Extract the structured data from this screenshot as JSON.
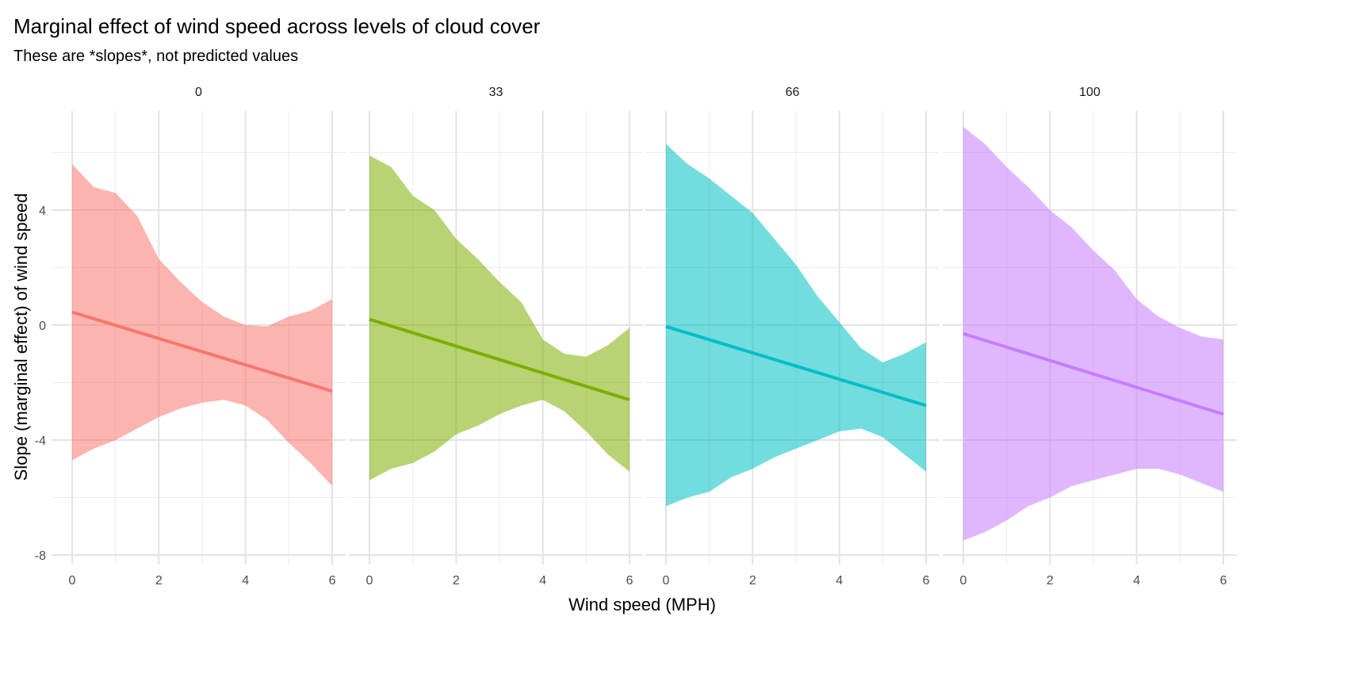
{
  "chart_data": {
    "type": "area",
    "title": "Marginal effect of wind speed across levels of cloud cover",
    "subtitle": "These are *slopes*, not predicted values",
    "xlabel": "Wind speed (MPH)",
    "ylabel": "Slope (marginal effect) of wind speed",
    "xlim": [
      -0.48,
      6.28
    ],
    "ylim": [
      -8.3,
      7.2
    ],
    "x_ticks": [
      "0",
      "2",
      "4",
      "6"
    ],
    "x_tick_values": [
      0,
      2,
      4,
      6
    ],
    "y_ticks": [
      "-8",
      "-4",
      "0",
      "4"
    ],
    "y_tick_values": [
      -8,
      -4,
      0,
      4
    ],
    "grid": true,
    "x": [
      0,
      0.5,
      1,
      1.5,
      2,
      2.5,
      3,
      3.5,
      4,
      4.5,
      5,
      5.5,
      6
    ],
    "series": [
      {
        "name": "0",
        "color": "#F8766D",
        "line": [
          0.45,
          -2.3
        ],
        "upper": [
          5.6,
          4.8,
          4.6,
          3.8,
          2.3,
          1.5,
          0.8,
          0.3,
          0.0,
          -0.05,
          0.3,
          0.5,
          0.9
        ],
        "lower": [
          -4.7,
          -4.3,
          -4.0,
          -3.6,
          -3.2,
          -2.9,
          -2.7,
          -2.6,
          -2.8,
          -3.3,
          -4.1,
          -4.8,
          -5.6
        ]
      },
      {
        "name": "33",
        "color": "#7CAE00",
        "line": [
          0.2,
          -2.6
        ],
        "upper": [
          5.9,
          5.5,
          4.5,
          4.0,
          3.0,
          2.3,
          1.5,
          0.8,
          -0.5,
          -1.0,
          -1.1,
          -0.7,
          -0.1
        ],
        "lower": [
          -5.4,
          -5.0,
          -4.8,
          -4.4,
          -3.8,
          -3.5,
          -3.1,
          -2.8,
          -2.6,
          -3.0,
          -3.7,
          -4.5,
          -5.1
        ]
      },
      {
        "name": "66",
        "color": "#00BFC4",
        "line": [
          -0.05,
          -2.8
        ],
        "upper": [
          6.3,
          5.6,
          5.1,
          4.5,
          3.9,
          3.0,
          2.1,
          1.0,
          0.1,
          -0.8,
          -1.3,
          -1.0,
          -0.6
        ],
        "lower": [
          -6.3,
          -6.0,
          -5.8,
          -5.3,
          -5.0,
          -4.6,
          -4.3,
          -4.0,
          -3.7,
          -3.6,
          -3.9,
          -4.5,
          -5.1
        ]
      },
      {
        "name": "100",
        "color": "#C77CFF",
        "line": [
          -0.3,
          -3.1
        ],
        "upper": [
          6.9,
          6.3,
          5.5,
          4.8,
          4.0,
          3.4,
          2.6,
          1.9,
          0.9,
          0.3,
          -0.1,
          -0.4,
          -0.5
        ],
        "lower": [
          -7.5,
          -7.2,
          -6.8,
          -6.3,
          -6.0,
          -5.6,
          -5.4,
          -5.2,
          -5.0,
          -5.0,
          -5.2,
          -5.5,
          -5.8
        ]
      }
    ]
  }
}
